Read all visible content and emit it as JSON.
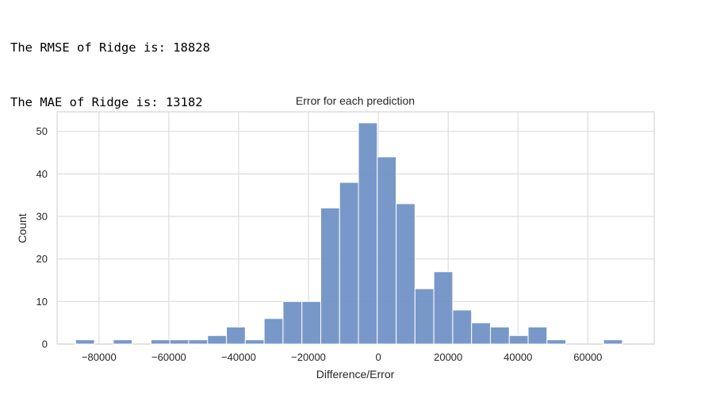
{
  "output": {
    "lines": [
      "The RMSE of Ridge is: 18828",
      "The MAE of Ridge is: 13182"
    ]
  },
  "chart_data": {
    "type": "bar",
    "title": "Error for each prediction",
    "xlabel": "Difference/Error",
    "ylabel": "Count",
    "xlim": [
      -92000,
      79000
    ],
    "ylim": [
      0,
      54.6
    ],
    "xticks": [
      -80000,
      -60000,
      -40000,
      -20000,
      0,
      20000,
      40000,
      60000
    ],
    "xtick_labels": [
      "−80000",
      "−60000",
      "−40000",
      "−20000",
      "0",
      "20000",
      "40000",
      "60000"
    ],
    "yticks": [
      0,
      10,
      20,
      30,
      40,
      50
    ],
    "ytick_labels": [
      "0",
      "10",
      "20",
      "30",
      "40",
      "50"
    ],
    "grid": true,
    "bar_color": "#6d8fc4",
    "bins": [
      {
        "x0": -86700,
        "x1": -81300,
        "count": 1
      },
      {
        "x0": -81300,
        "x1": -75900,
        "count": 0
      },
      {
        "x0": -75900,
        "x1": -70500,
        "count": 1
      },
      {
        "x0": -70500,
        "x1": -65100,
        "count": 0
      },
      {
        "x0": -65100,
        "x1": -59700,
        "count": 1
      },
      {
        "x0": -59700,
        "x1": -54300,
        "count": 1
      },
      {
        "x0": -54300,
        "x1": -48900,
        "count": 1
      },
      {
        "x0": -48900,
        "x1": -43500,
        "count": 2
      },
      {
        "x0": -43500,
        "x1": -38100,
        "count": 4
      },
      {
        "x0": -38100,
        "x1": -32700,
        "count": 1
      },
      {
        "x0": -32700,
        "x1": -27300,
        "count": 6
      },
      {
        "x0": -27300,
        "x1": -21900,
        "count": 10
      },
      {
        "x0": -21900,
        "x1": -16500,
        "count": 10
      },
      {
        "x0": -16500,
        "x1": -11100,
        "count": 32
      },
      {
        "x0": -11100,
        "x1": -5700,
        "count": 38
      },
      {
        "x0": -5700,
        "x1": -300,
        "count": 52
      },
      {
        "x0": -300,
        "x1": 5100,
        "count": 44
      },
      {
        "x0": 5100,
        "x1": 10500,
        "count": 33
      },
      {
        "x0": 10500,
        "x1": 15900,
        "count": 13
      },
      {
        "x0": 15900,
        "x1": 21300,
        "count": 17
      },
      {
        "x0": 21300,
        "x1": 26700,
        "count": 8
      },
      {
        "x0": 26700,
        "x1": 32100,
        "count": 5
      },
      {
        "x0": 32100,
        "x1": 37500,
        "count": 4
      },
      {
        "x0": 37500,
        "x1": 42900,
        "count": 2
      },
      {
        "x0": 42900,
        "x1": 48300,
        "count": 4
      },
      {
        "x0": 48300,
        "x1": 53700,
        "count": 1
      },
      {
        "x0": 53700,
        "x1": 59100,
        "count": 0
      },
      {
        "x0": 59100,
        "x1": 64500,
        "count": 0
      },
      {
        "x0": 64500,
        "x1": 69900,
        "count": 1
      }
    ]
  }
}
